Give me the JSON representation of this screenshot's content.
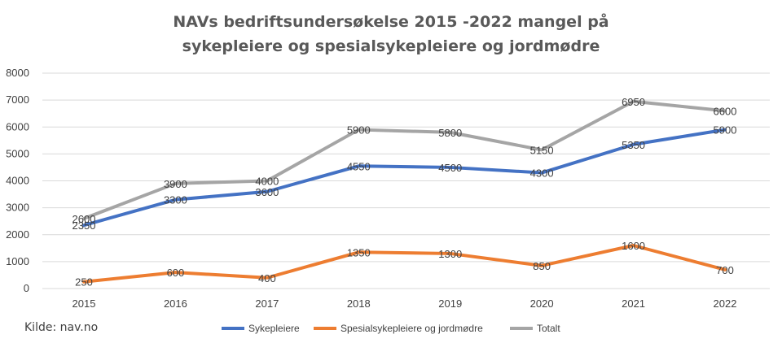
{
  "chart_data": {
    "type": "line",
    "title_lines": [
      "NAVs bedriftsundersøkelse 2015 -2022 mangel på",
      "sykepleiere og spesialsykepleiere og jordmødre"
    ],
    "categories": [
      "2015",
      "2016",
      "2017",
      "2018",
      "2019",
      "2020",
      "2021",
      "2022"
    ],
    "ylim": [
      0,
      8000
    ],
    "yticks": [
      0,
      1000,
      2000,
      3000,
      4000,
      5000,
      6000,
      7000,
      8000
    ],
    "grid": true,
    "legend_position": "bottom",
    "source_note": "Kilde: nav.no",
    "series": [
      {
        "name": "Sykepleiere",
        "color": "#4472C4",
        "values": [
          2350,
          3300,
          3600,
          4550,
          4500,
          4300,
          5350,
          5900
        ]
      },
      {
        "name": "Spesialsykepleiere og jordmødre",
        "color": "#ED7D31",
        "values": [
          250,
          600,
          400,
          1350,
          1300,
          850,
          1600,
          700
        ]
      },
      {
        "name": "Totalt",
        "color": "#A5A5A5",
        "values": [
          2600,
          3900,
          4000,
          5900,
          5800,
          5150,
          6950,
          6600
        ]
      }
    ]
  }
}
